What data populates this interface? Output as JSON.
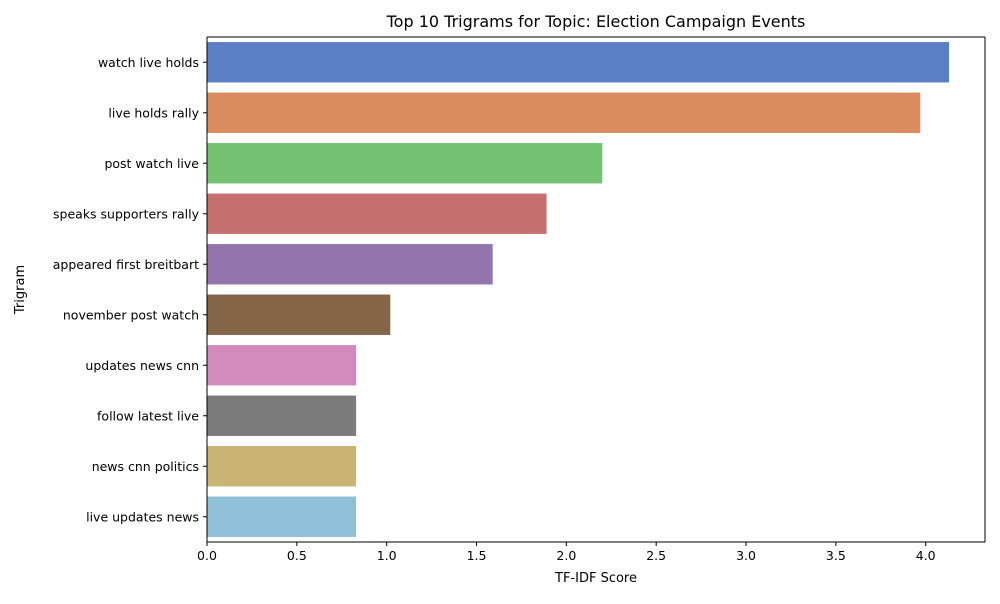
{
  "chart_data": {
    "type": "bar",
    "orientation": "horizontal",
    "title": "Top 10 Trigrams for Topic: Election Campaign Events",
    "xlabel": "TF-IDF Score",
    "ylabel": "Trigram",
    "xlim": [
      0,
      4.33
    ],
    "xticks": [
      "0.0",
      "0.5",
      "1.0",
      "1.5",
      "2.0",
      "2.5",
      "3.0",
      "3.5",
      "4.0"
    ],
    "grid": false,
    "legend": "none",
    "categories": [
      "watch live holds",
      "live holds rally",
      "post watch live",
      "speaks supporters rally",
      "appeared first breitbart",
      "november post watch",
      "updates news cnn",
      "follow latest live",
      "news cnn politics",
      "live updates news"
    ],
    "values": [
      4.13,
      3.97,
      2.2,
      1.89,
      1.59,
      1.02,
      0.83,
      0.83,
      0.83,
      0.83
    ],
    "colors": [
      "#5b7fc4",
      "#d98b5e",
      "#74c172",
      "#c76e6e",
      "#9474ad",
      "#856548",
      "#d38abf",
      "#7b7b7b",
      "#c9b473",
      "#8fc0d7"
    ]
  }
}
